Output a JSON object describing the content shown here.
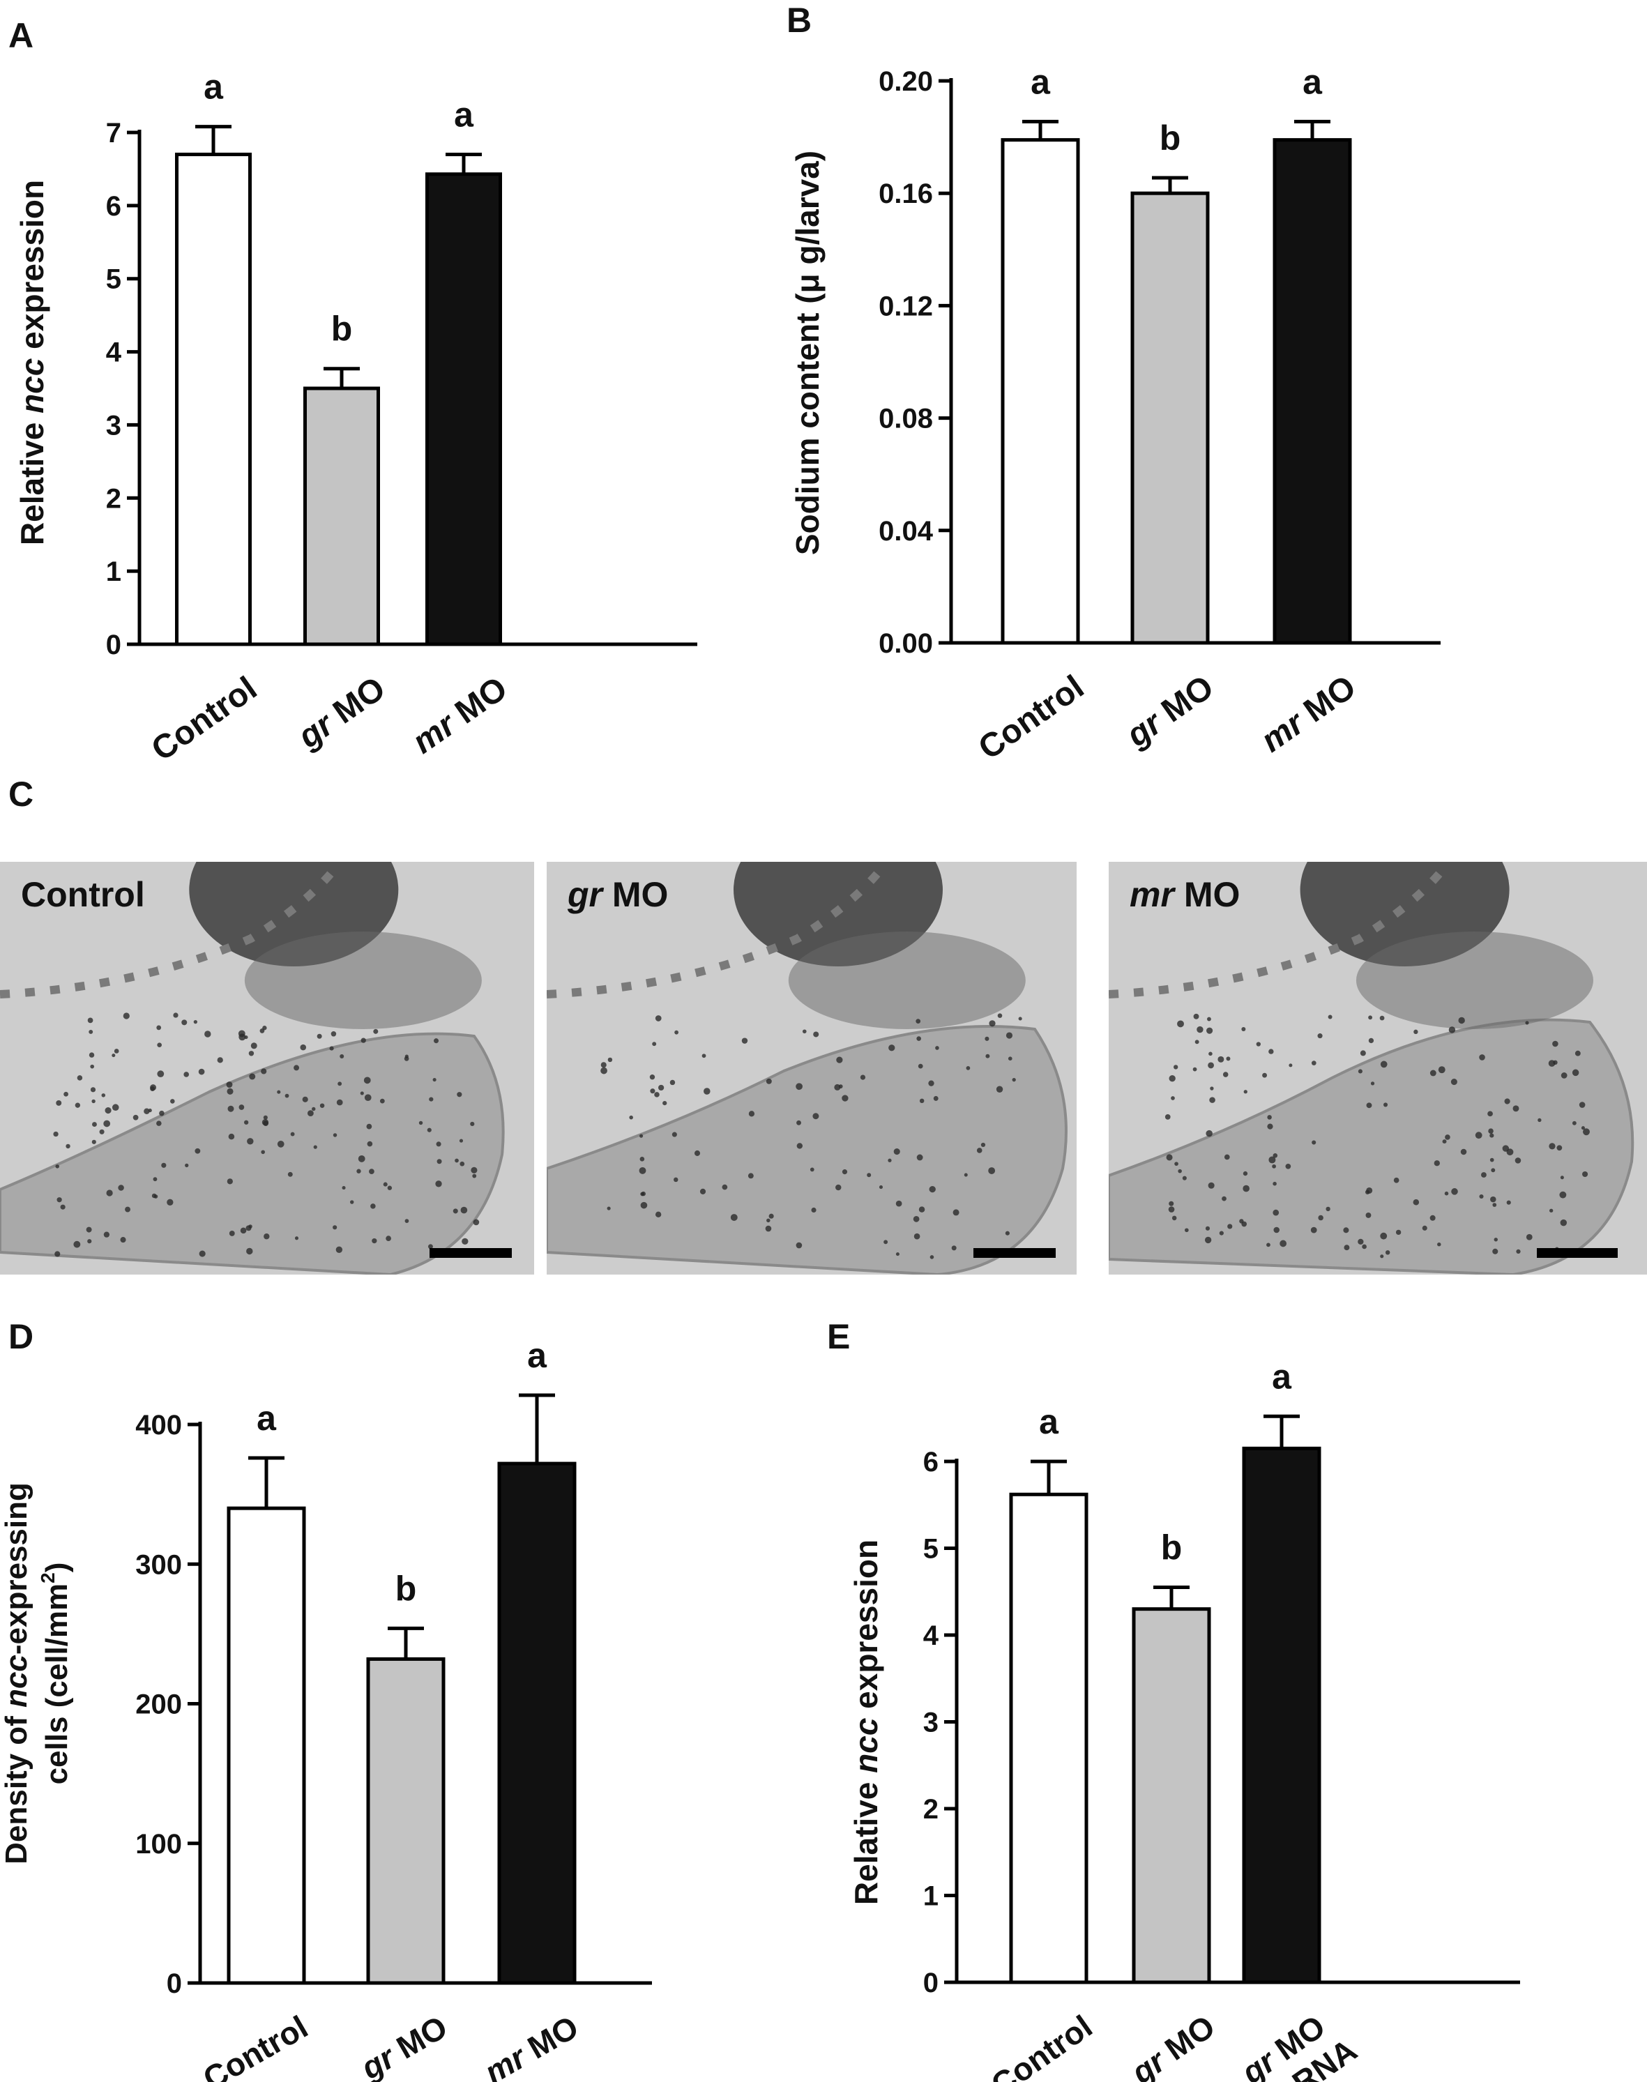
{
  "panels": {
    "A": {
      "letter": "A"
    },
    "B": {
      "letter": "B"
    },
    "C": {
      "letter": "C"
    },
    "D": {
      "letter": "D"
    },
    "E": {
      "letter": "E"
    }
  },
  "chart_data": [
    {
      "panel": "A",
      "type": "bar",
      "categories": [
        {
          "italic": "",
          "rest": "Control"
        },
        {
          "italic": "gr",
          "rest": " MO"
        },
        {
          "italic": "mr",
          "rest": " MO"
        }
      ],
      "values": [
        6.7,
        3.5,
        6.43
      ],
      "errors": [
        0.38,
        0.27,
        0.27
      ],
      "letters": [
        "a",
        "b",
        "a"
      ],
      "fills": [
        "#ffffff",
        "#c4c4c4",
        "#111111"
      ],
      "ylabel": {
        "pre": "Relative ",
        "italic": "ncc",
        "post": " expression"
      },
      "ylim": [
        0,
        7
      ],
      "yticks": [
        "0",
        "1",
        "2",
        "3",
        "4",
        "5",
        "6",
        "7"
      ],
      "grid": false
    },
    {
      "panel": "B",
      "type": "bar",
      "categories": [
        {
          "italic": "",
          "rest": "Control"
        },
        {
          "italic": "gr",
          "rest": " MO"
        },
        {
          "italic": "mr",
          "rest": " MO"
        }
      ],
      "values": [
        0.179,
        0.16,
        0.179
      ],
      "errors": [
        0.0065,
        0.0055,
        0.0065
      ],
      "letters": [
        "a",
        "b",
        "a"
      ],
      "fills": [
        "#ffffff",
        "#c4c4c4",
        "#111111"
      ],
      "ylabel": {
        "pre": "Sodium content (μ g/larva)",
        "italic": "",
        "post": ""
      },
      "ylim": [
        0,
        0.2
      ],
      "yticks": [
        "0.00",
        "0.04",
        "0.08",
        "0.12",
        "0.16",
        "0.20"
      ],
      "grid": false
    },
    {
      "panel": "D",
      "type": "bar",
      "categories": [
        {
          "italic": "",
          "rest": "Control"
        },
        {
          "italic": "gr",
          "rest": " MO"
        },
        {
          "italic": "mr",
          "rest": " MO"
        }
      ],
      "values": [
        340,
        232,
        372
      ],
      "errors": [
        36,
        22,
        49
      ],
      "letters": [
        "a",
        "b",
        "a"
      ],
      "fills": [
        "#ffffff",
        "#c4c4c4",
        "#111111"
      ],
      "ylabel": {
        "line1_pre": "Density of ",
        "line1_italic": "ncc",
        "line1_post": "-expressing",
        "line2": "cells (cell/mm",
        "line2_sup": "2",
        "line2_post": ")"
      },
      "ylim": [
        0,
        400
      ],
      "yticks": [
        "0",
        "100",
        "200",
        "300",
        "400"
      ],
      "grid": false
    },
    {
      "panel": "E",
      "type": "bar",
      "categories": [
        {
          "italic": "",
          "rest": "Control"
        },
        {
          "italic": "gr",
          "rest": " MO"
        },
        {
          "italic": "gr",
          "rest": " MO",
          "line2_italic": "+gr",
          "line2_rest": " cRNA"
        }
      ],
      "values": [
        5.62,
        4.3,
        6.15
      ],
      "errors": [
        0.38,
        0.25,
        0.37
      ],
      "letters": [
        "a",
        "b",
        "a"
      ],
      "fills": [
        "#ffffff",
        "#c4c4c4",
        "#111111"
      ],
      "ylabel": {
        "pre": "Relative ",
        "italic": "ncc",
        "post": " expression"
      },
      "ylim": [
        0,
        6
      ],
      "yticks": [
        "0",
        "1",
        "2",
        "3",
        "4",
        "5",
        "6"
      ],
      "grid": false
    }
  ],
  "micrographs": [
    {
      "label_italic": "",
      "label_rest": "Control"
    },
    {
      "label_italic": "gr",
      "label_rest": " MO"
    },
    {
      "label_italic": "mr",
      "label_rest": " MO"
    }
  ]
}
